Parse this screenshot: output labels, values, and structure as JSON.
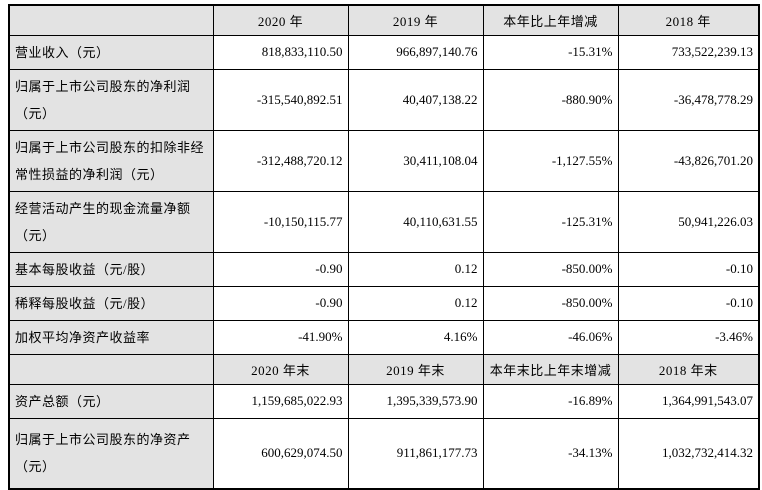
{
  "table": {
    "header_year": {
      "corner": "",
      "cols": [
        "2020 年",
        "2019 年",
        "本年比上年增减",
        "2018 年"
      ]
    },
    "rows_year": [
      {
        "label": "营业收入（元）",
        "values": [
          "818,833,110.50",
          "966,897,140.76",
          "-15.31%",
          "733,522,239.13"
        ]
      },
      {
        "label": "归属于上市公司股东的净利润（元）",
        "values": [
          "-315,540,892.51",
          "40,407,138.22",
          "-880.90%",
          "-36,478,778.29"
        ]
      },
      {
        "label": "归属于上市公司股东的扣除非经常性损益的净利润（元）",
        "values": [
          "-312,488,720.12",
          "30,411,108.04",
          "-1,127.55%",
          "-43,826,701.20"
        ]
      },
      {
        "label": "经营活动产生的现金流量净额（元）",
        "values": [
          "-10,150,115.77",
          "40,110,631.55",
          "-125.31%",
          "50,941,226.03"
        ]
      },
      {
        "label": "基本每股收益（元/股）",
        "values": [
          "-0.90",
          "0.12",
          "-850.00%",
          "-0.10"
        ]
      },
      {
        "label": "稀释每股收益（元/股）",
        "values": [
          "-0.90",
          "0.12",
          "-850.00%",
          "-0.10"
        ]
      },
      {
        "label": "加权平均净资产收益率",
        "values": [
          "-41.90%",
          "4.16%",
          "-46.06%",
          "-3.46%"
        ]
      }
    ],
    "header_yearend": {
      "corner": "",
      "cols": [
        "2020 年末",
        "2019 年末",
        "本年末比上年末增减",
        "2018 年末"
      ]
    },
    "rows_yearend": [
      {
        "label": "资产总额（元）",
        "values": [
          "1,159,685,022.93",
          "1,395,339,573.90",
          "-16.89%",
          "1,364,991,543.07"
        ]
      },
      {
        "label": "归属于上市公司股东的净资产（元）",
        "values": [
          "600,629,074.50",
          "911,861,177.73",
          "-34.13%",
          "1,032,732,414.32"
        ]
      }
    ],
    "colors": {
      "header_fill": "#e3e3e3",
      "label_fill": "#e3e3e3",
      "border": "#000000",
      "text": "#000000"
    }
  }
}
